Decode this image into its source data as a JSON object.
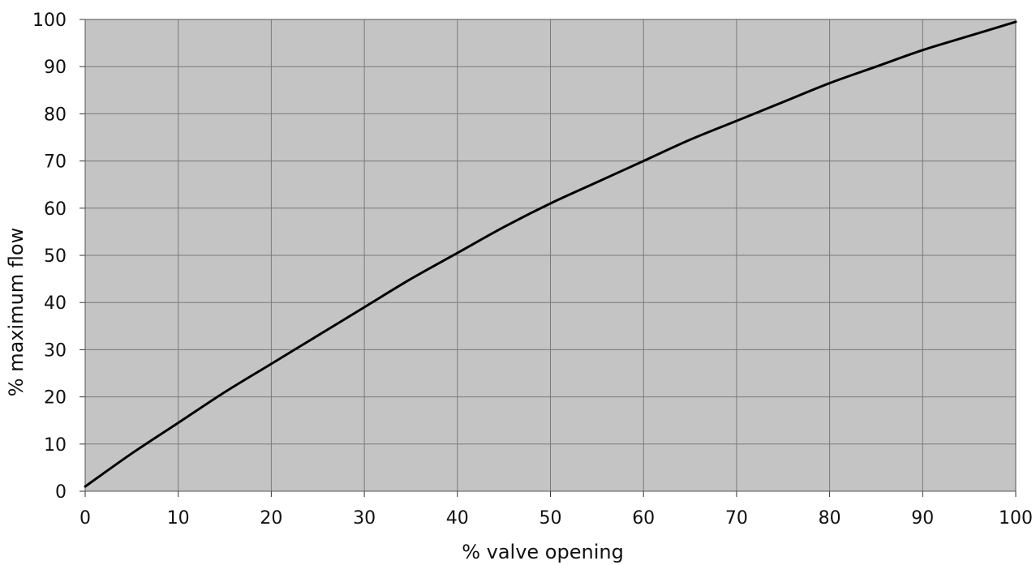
{
  "chart_data": {
    "type": "line",
    "title": "",
    "xlabel": "% valve opening",
    "ylabel": "% maximum flow",
    "xlim": [
      0,
      100
    ],
    "ylim": [
      0,
      100
    ],
    "x_ticks": [
      "0",
      "10",
      "20",
      "30",
      "40",
      "50",
      "60",
      "70",
      "80",
      "90",
      "100"
    ],
    "y_ticks": [
      "0",
      "10",
      "20",
      "30",
      "40",
      "50",
      "60",
      "70",
      "80",
      "90",
      "100"
    ],
    "grid": true,
    "legend": "none",
    "plot_background": "#c4c4c4",
    "grid_color": "#7a7a7a",
    "line_color": "#000000",
    "series": [
      {
        "x": [
          0,
          5,
          10,
          15,
          20,
          25,
          30,
          35,
          40,
          45,
          50,
          55,
          60,
          65,
          70,
          75,
          80,
          85,
          90,
          95,
          100
        ],
        "values": [
          1,
          8,
          14.5,
          21,
          27,
          33,
          39,
          45,
          50.5,
          56,
          61,
          65.5,
          70,
          74.5,
          78.5,
          82.5,
          86.5,
          90,
          93.5,
          96.5,
          99.5
        ]
      }
    ]
  }
}
